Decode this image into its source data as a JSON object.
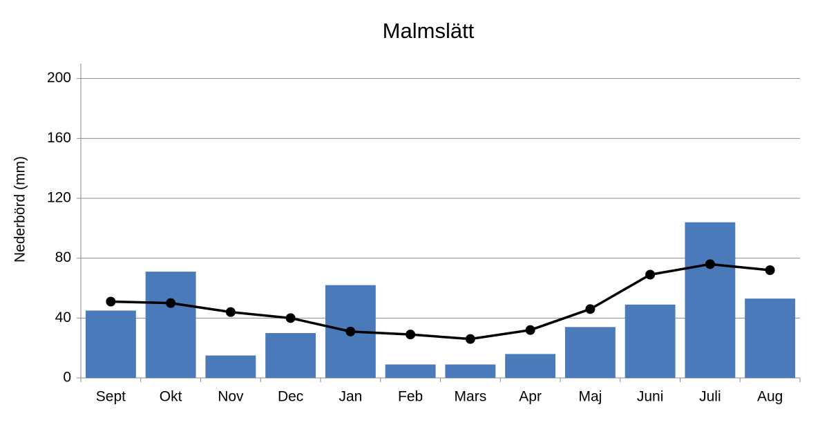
{
  "chart_data": {
    "type": "combo",
    "title": "Malmslätt",
    "y_label": "Nederbörd (mm)",
    "categories": [
      "Sept",
      "Okt",
      "Nov",
      "Dec",
      "Jan",
      "Feb",
      "Mars",
      "Apr",
      "Maj",
      "Juni",
      "Juli",
      "Aug"
    ],
    "series": [
      {
        "type": "bar",
        "color": "#4a7aba",
        "values": [
          45,
          71,
          15,
          30,
          62,
          9,
          9,
          16,
          34,
          49,
          104,
          53
        ]
      },
      {
        "type": "line",
        "color": "#000000",
        "values": [
          51,
          50,
          44,
          40,
          31,
          29,
          26,
          32,
          46,
          69,
          76,
          72
        ]
      }
    ],
    "ylim": [
      0,
      210
    ],
    "yticks": [
      0,
      40,
      80,
      120,
      160,
      200
    ],
    "grid": true
  }
}
